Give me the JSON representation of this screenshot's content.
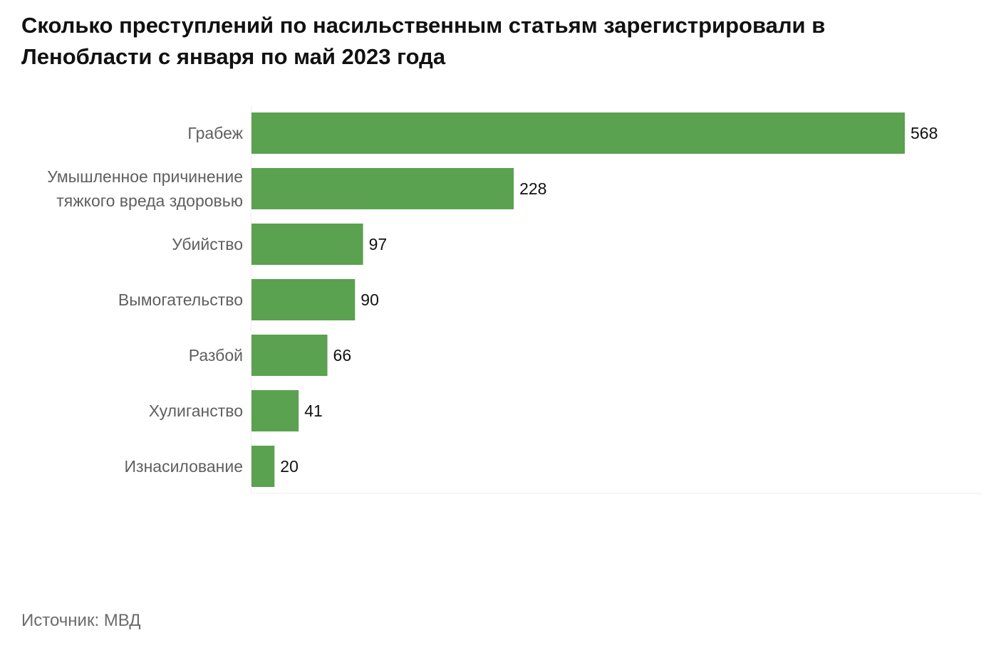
{
  "chart_data": {
    "type": "bar",
    "orientation": "horizontal",
    "title": "Сколько преступлений по насильственным статьям зарегистрировали в Ленобласти с января по май 2023 года",
    "categories": [
      "Грабеж",
      "Умышленное причинение тяжкого вреда здоровью",
      "Убийство",
      "Вымогательство",
      "Разбой",
      "Хулиганство",
      "Изнасилование"
    ],
    "values": [
      568,
      228,
      97,
      90,
      66,
      41,
      20
    ],
    "xlabel": "",
    "ylabel": "",
    "grid": false,
    "data_labels": true,
    "bar_color": "#5aa150",
    "source": "Источник: МВД"
  }
}
